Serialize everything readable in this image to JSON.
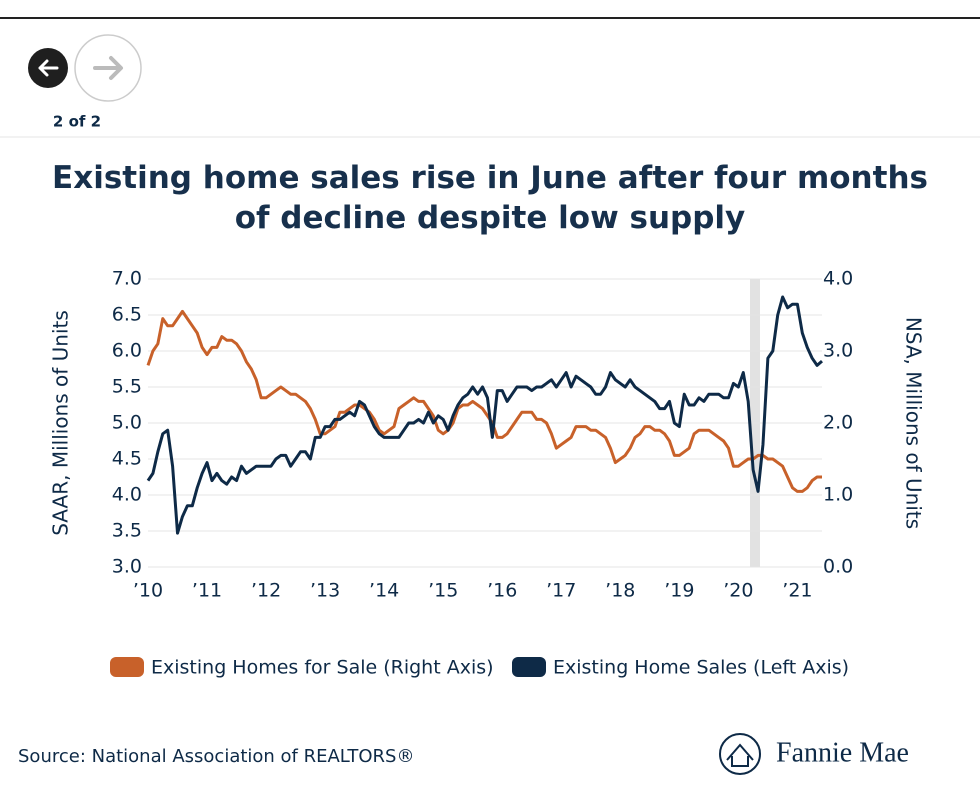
{
  "page": {
    "counter": "2 of 2",
    "source": "Source: National Association of REALTORS®",
    "brand": "Fannie Mae"
  },
  "chart_data": {
    "type": "line",
    "title": "Existing home sales rise in June after four months of decline despite low supply",
    "ylabel": "SAAR, Millions of Units",
    "y2label": "NSA, Millions of Units",
    "categories": [
      "’10",
      null,
      null,
      null,
      null,
      null,
      null,
      null,
      null,
      null,
      null,
      null,
      "’11",
      null,
      null,
      null,
      null,
      null,
      null,
      null,
      null,
      null,
      null,
      null,
      "’12",
      null,
      null,
      null,
      null,
      null,
      null,
      null,
      null,
      null,
      null,
      null,
      "’13",
      null,
      null,
      null,
      null,
      null,
      null,
      null,
      null,
      null,
      null,
      null,
      "’14",
      null,
      null,
      null,
      null,
      null,
      null,
      null,
      null,
      null,
      null,
      null,
      "’15",
      null,
      null,
      null,
      null,
      null,
      null,
      null,
      null,
      null,
      null,
      null,
      "’16",
      null,
      null,
      null,
      null,
      null,
      null,
      null,
      null,
      null,
      null,
      null,
      "’17",
      null,
      null,
      null,
      null,
      null,
      null,
      null,
      null,
      null,
      null,
      null,
      "’18",
      null,
      null,
      null,
      null,
      null,
      null,
      null,
      null,
      null,
      null,
      null,
      "’19",
      null,
      null,
      null,
      null,
      null,
      null,
      null,
      null,
      null,
      null,
      null,
      "’20",
      null,
      null,
      null,
      null,
      null,
      null,
      null,
      null,
      null,
      null,
      null,
      "’21",
      null,
      null,
      null,
      null,
      null
    ],
    "ylim": [
      3,
      7
    ],
    "yticks": [
      {
        "value": 3,
        "label": "3.0"
      },
      {
        "value": 3.5,
        "label": "3.5"
      },
      {
        "value": 4,
        "label": "4.0"
      },
      {
        "value": 4.5,
        "label": "4.5"
      },
      {
        "value": 5,
        "label": "5.0"
      },
      {
        "value": 5.5,
        "label": "5.5"
      },
      {
        "value": 6,
        "label": "6.0"
      },
      {
        "value": 6.5,
        "label": "6.5"
      },
      {
        "value": 7,
        "label": "7.0"
      }
    ],
    "y2lim": [
      0,
      4
    ],
    "y2ticks": [
      {
        "value": 0,
        "label": "0.0"
      },
      {
        "value": 1,
        "label": "1.0"
      },
      {
        "value": 2,
        "label": "2.0"
      },
      {
        "value": 3,
        "label": "3.0"
      },
      {
        "value": 4,
        "label": "4.0"
      }
    ],
    "grid": true,
    "series": [
      {
        "name": "Existing Homes for Sale (Right Axis)",
        "color": "#c8612a",
        "axis": "y2",
        "values": [
          2.8,
          3.0,
          3.1,
          3.45,
          3.35,
          3.35,
          3.45,
          3.55,
          3.45,
          3.35,
          3.25,
          3.05,
          2.95,
          3.05,
          3.05,
          3.2,
          3.15,
          3.15,
          3.1,
          3.0,
          2.85,
          2.75,
          2.6,
          2.35,
          2.35,
          2.4,
          2.45,
          2.5,
          2.45,
          2.4,
          2.4,
          2.35,
          2.3,
          2.2,
          2.05,
          1.85,
          1.85,
          1.9,
          1.95,
          2.15,
          2.15,
          2.2,
          2.25,
          2.25,
          2.2,
          2.15,
          2.05,
          1.9,
          1.85,
          1.9,
          1.95,
          2.2,
          2.25,
          2.3,
          2.35,
          2.3,
          2.3,
          2.2,
          2.1,
          1.9,
          1.85,
          1.9,
          2.0,
          2.2,
          2.25,
          2.25,
          2.3,
          2.25,
          2.2,
          2.1,
          2.0,
          1.8,
          1.8,
          1.85,
          1.95,
          2.05,
          2.15,
          2.15,
          2.15,
          2.05,
          2.05,
          2.0,
          1.85,
          1.65,
          1.7,
          1.75,
          1.8,
          1.95,
          1.95,
          1.95,
          1.9,
          1.9,
          1.85,
          1.8,
          1.65,
          1.45,
          1.5,
          1.55,
          1.65,
          1.8,
          1.85,
          1.95,
          1.95,
          1.9,
          1.9,
          1.85,
          1.75,
          1.55,
          1.55,
          1.6,
          1.65,
          1.85,
          1.9,
          1.9,
          1.9,
          1.85,
          1.8,
          1.75,
          1.65,
          1.4,
          1.4,
          1.45,
          1.5,
          1.5,
          1.55,
          1.55,
          1.5,
          1.5,
          1.45,
          1.4,
          1.25,
          1.1,
          1.05,
          1.05,
          1.1,
          1.2,
          1.25,
          1.25
        ]
      },
      {
        "name": "Existing Home Sales (Left Axis)",
        "color": "#0e2a47",
        "axis": "y",
        "values": [
          4.2,
          4.3,
          4.6,
          4.85,
          4.9,
          4.4,
          3.47,
          3.7,
          3.85,
          3.85,
          4.1,
          4.3,
          4.45,
          4.2,
          4.3,
          4.2,
          4.15,
          4.25,
          4.2,
          4.4,
          4.3,
          4.35,
          4.4,
          4.4,
          4.4,
          4.4,
          4.5,
          4.55,
          4.55,
          4.4,
          4.5,
          4.6,
          4.6,
          4.5,
          4.8,
          4.8,
          4.95,
          4.95,
          5.05,
          5.05,
          5.1,
          5.15,
          5.1,
          5.3,
          5.25,
          5.1,
          4.95,
          4.85,
          4.8,
          4.8,
          4.8,
          4.8,
          4.9,
          5.0,
          5.0,
          5.05,
          5.0,
          5.15,
          5.0,
          5.1,
          5.05,
          4.9,
          5.1,
          5.25,
          5.35,
          5.4,
          5.5,
          5.4,
          5.5,
          5.35,
          4.8,
          5.45,
          5.45,
          5.3,
          5.4,
          5.5,
          5.5,
          5.5,
          5.45,
          5.5,
          5.5,
          5.55,
          5.6,
          5.5,
          5.6,
          5.7,
          5.5,
          5.65,
          5.6,
          5.55,
          5.5,
          5.4,
          5.4,
          5.5,
          5.7,
          5.6,
          5.55,
          5.5,
          5.6,
          5.5,
          5.45,
          5.4,
          5.35,
          5.3,
          5.2,
          5.2,
          5.3,
          5.0,
          4.95,
          5.4,
          5.25,
          5.25,
          5.35,
          5.3,
          5.4,
          5.4,
          5.4,
          5.35,
          5.35,
          5.55,
          5.5,
          5.7,
          5.3,
          4.35,
          4.05,
          4.7,
          5.9,
          6.0,
          6.5,
          6.75,
          6.6,
          6.65,
          6.65,
          6.25,
          6.05,
          5.9,
          5.8,
          5.86
        ]
      }
    ]
  }
}
